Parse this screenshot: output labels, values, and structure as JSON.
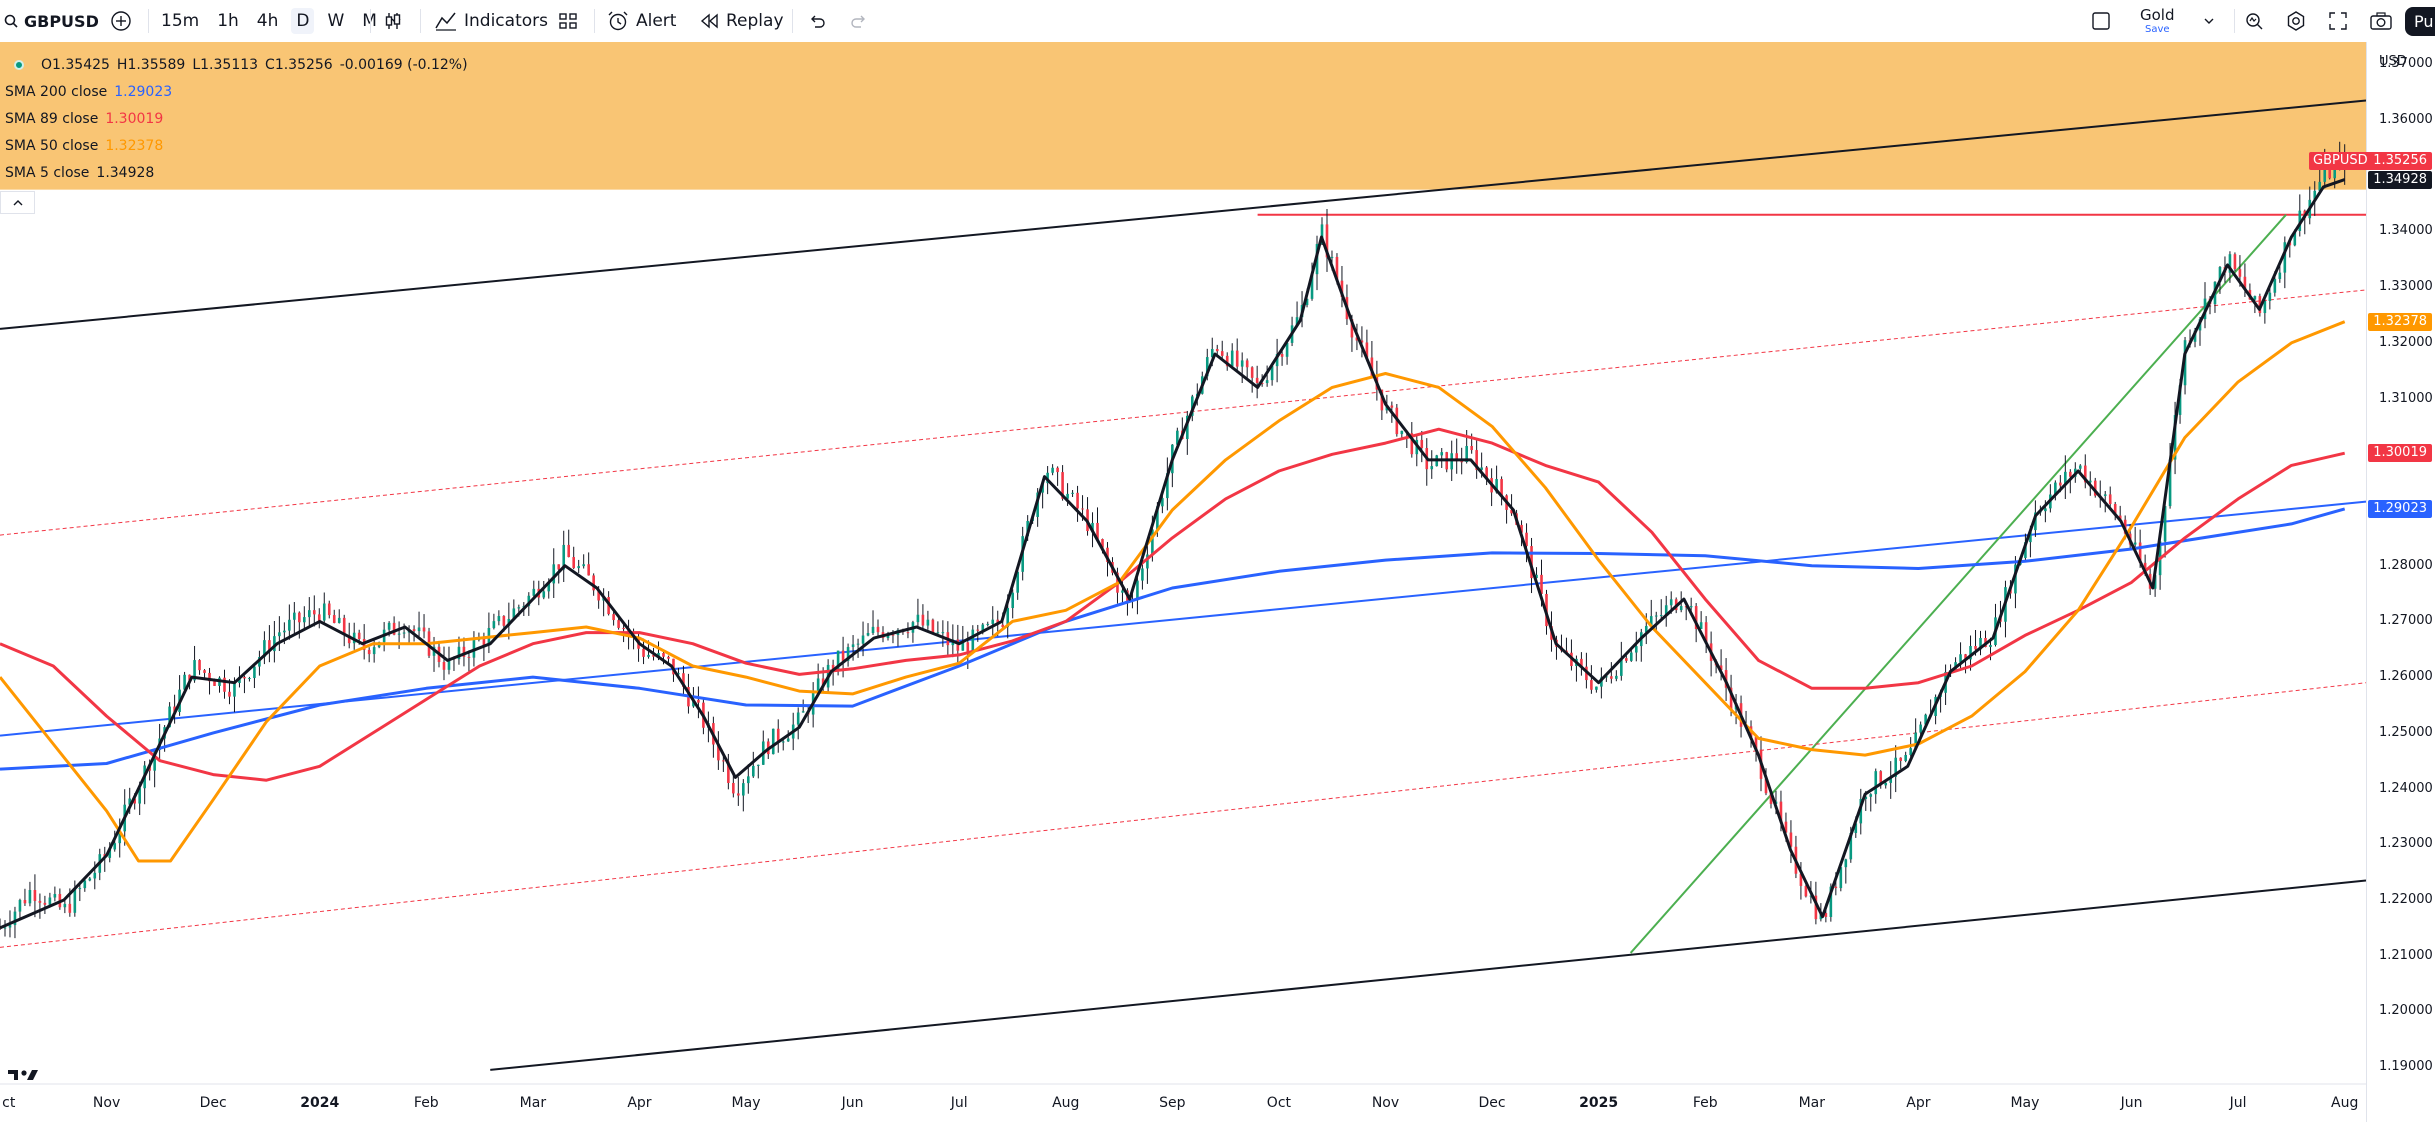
{
  "toolbar": {
    "symbol": "GBPUSD",
    "timeframes": [
      "15m",
      "1h",
      "4h",
      "D",
      "W",
      "M"
    ],
    "indicators_label": "Indicators",
    "alert_label": "Alert",
    "replay_label": "Replay",
    "theme_label": "Gold",
    "theme_sub": "Save",
    "publish_label": "Pu"
  },
  "legend": {
    "ohlc": {
      "open": "O1.35425",
      "high": "H1.35589",
      "low": "L1.35113",
      "close": "C1.35256",
      "change": "-0.00169 (-0.12%)"
    },
    "indicators": [
      {
        "name": "SMA 200 close",
        "value": "1.29023",
        "color": "#2962ff"
      },
      {
        "name": "SMA 89 close",
        "value": "1.30019",
        "color": "#f23645"
      },
      {
        "name": "SMA 50 close",
        "value": "1.32378",
        "color": "#ff9800"
      },
      {
        "name": "SMA 5 close",
        "value": "1.34928",
        "color": "#131722"
      }
    ]
  },
  "price_scale": {
    "currency": "USD",
    "symbol_tag": "GBPUSD",
    "last_price": "1.35256",
    "badges": [
      {
        "value": "1.35256",
        "color": "#f23645"
      },
      {
        "value": "1.34928",
        "color": "#131722"
      },
      {
        "value": "1.32378",
        "color": "#ff9800"
      },
      {
        "value": "1.30019",
        "color": "#f23645"
      },
      {
        "value": "1.29023",
        "color": "#2962ff"
      }
    ]
  },
  "chart_data": {
    "type": "candlestick",
    "symbol": "GBPUSD",
    "interval": "D",
    "y_ticks": [
      "1.37000",
      "1.36000",
      "1.34000",
      "1.33000",
      "1.32000",
      "1.31000",
      "1.28000",
      "1.27000",
      "1.26000",
      "1.25000",
      "1.24000",
      "1.23000",
      "1.22000",
      "1.21000",
      "1.20000",
      "1.19000"
    ],
    "x_ticks": [
      "ct",
      "Nov",
      "Dec",
      "2024",
      "Feb",
      "Mar",
      "Apr",
      "May",
      "Jun",
      "Jul",
      "Aug",
      "Sep",
      "Oct",
      "Nov",
      "Dec",
      "2025",
      "Feb",
      "Mar",
      "Apr",
      "May",
      "Jun",
      "Jul",
      "Aug"
    ],
    "ylim": [
      1.185,
      1.374
    ],
    "xlim_months": [
      0,
      22.2
    ],
    "price_path": [
      [
        0,
        1.215
      ],
      [
        0.3,
        1.222
      ],
      [
        0.6,
        1.218
      ],
      [
        1.0,
        1.228
      ],
      [
        1.4,
        1.245
      ],
      [
        1.8,
        1.262
      ],
      [
        2.2,
        1.258
      ],
      [
        2.6,
        1.268
      ],
      [
        3.0,
        1.272
      ],
      [
        3.4,
        1.265
      ],
      [
        3.8,
        1.27
      ],
      [
        4.2,
        1.262
      ],
      [
        4.6,
        1.268
      ],
      [
        5.0,
        1.275
      ],
      [
        5.3,
        1.282
      ],
      [
        5.6,
        1.276
      ],
      [
        6.0,
        1.265
      ],
      [
        6.3,
        1.262
      ],
      [
        6.6,
        1.252
      ],
      [
        6.9,
        1.24
      ],
      [
        7.2,
        1.248
      ],
      [
        7.5,
        1.252
      ],
      [
        7.8,
        1.262
      ],
      [
        8.2,
        1.268
      ],
      [
        8.6,
        1.27
      ],
      [
        9.0,
        1.265
      ],
      [
        9.4,
        1.27
      ],
      [
        9.8,
        1.298
      ],
      [
        10.2,
        1.288
      ],
      [
        10.6,
        1.272
      ],
      [
        11.0,
        1.3
      ],
      [
        11.4,
        1.32
      ],
      [
        11.8,
        1.312
      ],
      [
        12.2,
        1.325
      ],
      [
        12.4,
        1.34
      ],
      [
        12.7,
        1.322
      ],
      [
        13.0,
        1.308
      ],
      [
        13.4,
        1.298
      ],
      [
        13.8,
        1.3
      ],
      [
        14.2,
        1.29
      ],
      [
        14.6,
        1.265
      ],
      [
        15.0,
        1.258
      ],
      [
        15.4,
        1.268
      ],
      [
        15.8,
        1.275
      ],
      [
        16.2,
        1.258
      ],
      [
        16.5,
        1.245
      ],
      [
        16.8,
        1.228
      ],
      [
        17.1,
        1.216
      ],
      [
        17.5,
        1.24
      ],
      [
        17.9,
        1.245
      ],
      [
        18.3,
        1.262
      ],
      [
        18.7,
        1.268
      ],
      [
        19.1,
        1.29
      ],
      [
        19.5,
        1.298
      ],
      [
        19.9,
        1.288
      ],
      [
        20.2,
        1.275
      ],
      [
        20.5,
        1.32
      ],
      [
        20.9,
        1.335
      ],
      [
        21.2,
        1.325
      ],
      [
        21.5,
        1.34
      ],
      [
        21.8,
        1.35
      ],
      [
        22.0,
        1.3526
      ]
    ],
    "series": [
      {
        "name": "SMA 200 close",
        "color": "#2962ff",
        "points": [
          [
            0,
            1.2435
          ],
          [
            1,
            1.2445
          ],
          [
            2,
            1.25
          ],
          [
            3,
            1.255
          ],
          [
            4,
            1.258
          ],
          [
            5,
            1.26
          ],
          [
            6,
            1.258
          ],
          [
            7,
            1.255
          ],
          [
            8,
            1.2548
          ],
          [
            9,
            1.262
          ],
          [
            10,
            1.27
          ],
          [
            11,
            1.276
          ],
          [
            12,
            1.279
          ],
          [
            13,
            1.281
          ],
          [
            14,
            1.2823
          ],
          [
            15,
            1.2822
          ],
          [
            16,
            1.2818
          ],
          [
            17,
            1.28
          ],
          [
            18,
            1.2795
          ],
          [
            19,
            1.2808
          ],
          [
            20,
            1.283
          ],
          [
            21.5,
            1.2875
          ],
          [
            22.0,
            1.2902
          ]
        ]
      },
      {
        "name": "SMA 89 close",
        "color": "#f23645",
        "points": [
          [
            0,
            1.266
          ],
          [
            0.5,
            1.262
          ],
          [
            1,
            1.253
          ],
          [
            1.5,
            1.245
          ],
          [
            2,
            1.2425
          ],
          [
            2.5,
            1.2415
          ],
          [
            3,
            1.244
          ],
          [
            3.5,
            1.25
          ],
          [
            4,
            1.256
          ],
          [
            4.5,
            1.262
          ],
          [
            5,
            1.266
          ],
          [
            5.5,
            1.268
          ],
          [
            6,
            1.268
          ],
          [
            6.5,
            1.266
          ],
          [
            7,
            1.2625
          ],
          [
            7.5,
            1.2605
          ],
          [
            8,
            1.2615
          ],
          [
            8.5,
            1.263
          ],
          [
            9,
            1.264
          ],
          [
            9.5,
            1.2665
          ],
          [
            10,
            1.27
          ],
          [
            10.5,
            1.277
          ],
          [
            11,
            1.285
          ],
          [
            11.5,
            1.292
          ],
          [
            12,
            1.297
          ],
          [
            12.5,
            1.3
          ],
          [
            13,
            1.302
          ],
          [
            13.5,
            1.3045
          ],
          [
            14,
            1.302
          ],
          [
            14.5,
            1.298
          ],
          [
            15,
            1.295
          ],
          [
            15.5,
            1.286
          ],
          [
            16,
            1.274
          ],
          [
            16.5,
            1.263
          ],
          [
            17,
            1.258
          ],
          [
            17.5,
            1.258
          ],
          [
            18,
            1.259
          ],
          [
            18.5,
            1.262
          ],
          [
            19,
            1.2675
          ],
          [
            19.5,
            1.272
          ],
          [
            20,
            1.277
          ],
          [
            20.5,
            1.285
          ],
          [
            21,
            1.292
          ],
          [
            21.5,
            1.298
          ],
          [
            22.0,
            1.3002
          ]
        ]
      },
      {
        "name": "SMA 50 close",
        "color": "#ff9800",
        "points": [
          [
            0,
            1.26
          ],
          [
            0.5,
            1.248
          ],
          [
            1,
            1.236
          ],
          [
            1.3,
            1.227
          ],
          [
            1.6,
            1.227
          ],
          [
            2,
            1.238
          ],
          [
            2.5,
            1.252
          ],
          [
            3,
            1.262
          ],
          [
            3.5,
            1.266
          ],
          [
            4,
            1.266
          ],
          [
            4.5,
            1.267
          ],
          [
            5,
            1.268
          ],
          [
            5.5,
            1.269
          ],
          [
            6,
            1.267
          ],
          [
            6.5,
            1.262
          ],
          [
            7,
            1.26
          ],
          [
            7.5,
            1.2575
          ],
          [
            8,
            1.257
          ],
          [
            8.5,
            1.26
          ],
          [
            9,
            1.2625
          ],
          [
            9.5,
            1.27
          ],
          [
            10,
            1.272
          ],
          [
            10.5,
            1.277
          ],
          [
            11,
            1.29
          ],
          [
            11.5,
            1.299
          ],
          [
            12,
            1.306
          ],
          [
            12.5,
            1.312
          ],
          [
            13,
            1.3145
          ],
          [
            13.5,
            1.312
          ],
          [
            14,
            1.305
          ],
          [
            14.5,
            1.294
          ],
          [
            15,
            1.281
          ],
          [
            15.5,
            1.269
          ],
          [
            16,
            1.259
          ],
          [
            16.5,
            1.249
          ],
          [
            17,
            1.247
          ],
          [
            17.5,
            1.246
          ],
          [
            18,
            1.248
          ],
          [
            18.5,
            1.253
          ],
          [
            19,
            1.261
          ],
          [
            19.5,
            1.272
          ],
          [
            20,
            1.287
          ],
          [
            20.5,
            1.303
          ],
          [
            21,
            1.313
          ],
          [
            21.5,
            1.32
          ],
          [
            22.0,
            1.3238
          ]
        ]
      },
      {
        "name": "SMA 5 close",
        "color": "#131722",
        "points": [
          [
            0,
            1.215
          ],
          [
            0.6,
            1.22
          ],
          [
            1.0,
            1.228
          ],
          [
            1.4,
            1.244
          ],
          [
            1.8,
            1.26
          ],
          [
            2.2,
            1.259
          ],
          [
            2.6,
            1.266
          ],
          [
            3.0,
            1.27
          ],
          [
            3.4,
            1.266
          ],
          [
            3.8,
            1.269
          ],
          [
            4.2,
            1.263
          ],
          [
            4.6,
            1.266
          ],
          [
            5.0,
            1.274
          ],
          [
            5.3,
            1.28
          ],
          [
            5.6,
            1.276
          ],
          [
            6.0,
            1.266
          ],
          [
            6.3,
            1.262
          ],
          [
            6.6,
            1.253
          ],
          [
            6.9,
            1.242
          ],
          [
            7.2,
            1.247
          ],
          [
            7.5,
            1.251
          ],
          [
            7.8,
            1.261
          ],
          [
            8.2,
            1.267
          ],
          [
            8.6,
            1.269
          ],
          [
            9.0,
            1.266
          ],
          [
            9.4,
            1.27
          ],
          [
            9.8,
            1.296
          ],
          [
            10.2,
            1.288
          ],
          [
            10.6,
            1.274
          ],
          [
            11.0,
            1.299
          ],
          [
            11.4,
            1.318
          ],
          [
            11.8,
            1.312
          ],
          [
            12.2,
            1.324
          ],
          [
            12.4,
            1.339
          ],
          [
            12.7,
            1.323
          ],
          [
            13.0,
            1.309
          ],
          [
            13.4,
            1.299
          ],
          [
            13.8,
            1.299
          ],
          [
            14.2,
            1.29
          ],
          [
            14.6,
            1.266
          ],
          [
            15.0,
            1.259
          ],
          [
            15.4,
            1.267
          ],
          [
            15.8,
            1.274
          ],
          [
            16.2,
            1.259
          ],
          [
            16.5,
            1.246
          ],
          [
            16.8,
            1.229
          ],
          [
            17.1,
            1.217
          ],
          [
            17.5,
            1.239
          ],
          [
            17.9,
            1.244
          ],
          [
            18.3,
            1.261
          ],
          [
            18.7,
            1.267
          ],
          [
            19.1,
            1.289
          ],
          [
            19.5,
            1.297
          ],
          [
            19.9,
            1.288
          ],
          [
            20.2,
            1.276
          ],
          [
            20.5,
            1.318
          ],
          [
            20.9,
            1.334
          ],
          [
            21.2,
            1.326
          ],
          [
            21.5,
            1.339
          ],
          [
            21.8,
            1.348
          ],
          [
            22.0,
            1.3493
          ]
        ]
      }
    ],
    "drawings": [
      {
        "kind": "rect",
        "color": "#f9c574",
        "from": [
          0,
          1.374
        ],
        "to": [
          22.2,
          1.3475
        ]
      },
      {
        "kind": "line",
        "color": "#131722",
        "from": [
          0,
          1.3225
        ],
        "to": [
          22.2,
          1.3635
        ]
      },
      {
        "kind": "line",
        "color": "#131722",
        "from": [
          4.6,
          1.1895
        ],
        "to": [
          22.2,
          1.2235
        ]
      },
      {
        "kind": "line",
        "color": "#f23645",
        "from": [
          11.8,
          1.343
        ],
        "to": [
          22.2,
          1.343
        ]
      },
      {
        "kind": "line",
        "color": "#2962ff",
        "from": [
          0,
          1.2495
        ],
        "to": [
          22.2,
          1.2915
        ]
      },
      {
        "kind": "line",
        "color": "#4caf50",
        "from": [
          15.3,
          1.2105
        ],
        "to": [
          21.45,
          1.343
        ]
      },
      {
        "kind": "dashed",
        "color": "#f23645",
        "from": [
          0,
          1.2855
        ],
        "to": [
          22.2,
          1.3295
        ]
      },
      {
        "kind": "dashed",
        "color": "#f23645",
        "from": [
          0,
          1.2115
        ],
        "to": [
          22.2,
          1.259
        ]
      }
    ]
  }
}
